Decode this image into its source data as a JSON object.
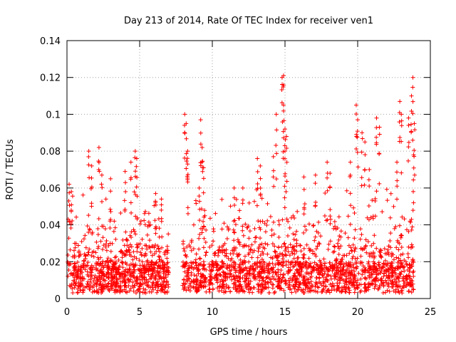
{
  "chart_data": {
    "type": "scatter",
    "title": "Day 213 of 2014, Rate Of TEC Index for receiver ven1",
    "xlabel": "GPS time / hours",
    "ylabel": "ROTI / TECUs",
    "xlim": [
      0,
      25
    ],
    "ylim": [
      0,
      0.14
    ],
    "xticks": [
      0,
      5,
      10,
      15,
      20,
      25
    ],
    "xtick_labels": [
      "0",
      "5",
      "10",
      "15",
      "20",
      "25"
    ],
    "yticks": [
      0,
      0.02,
      0.04,
      0.06,
      0.08,
      0.1,
      0.12,
      0.14
    ],
    "ytick_labels": [
      "0",
      "0.02",
      "0.04",
      "0.06",
      "0.08",
      "0.1",
      "0.12",
      "0.14"
    ],
    "grid": true,
    "marker": "+",
    "color": "#ff0000",
    "gaps": [
      [
        7.0,
        7.9
      ],
      [
        9.6,
        9.75
      ]
    ],
    "peaks": [
      [
        0.15,
        0.062
      ],
      [
        0.3,
        0.058
      ],
      [
        1.5,
        0.08
      ],
      [
        1.7,
        0.072
      ],
      [
        2.2,
        0.082
      ],
      [
        2.4,
        0.067
      ],
      [
        3.0,
        0.065
      ],
      [
        4.0,
        0.069
      ],
      [
        4.4,
        0.074
      ],
      [
        4.7,
        0.08
      ],
      [
        4.8,
        0.076
      ],
      [
        6.1,
        0.057
      ],
      [
        6.5,
        0.054
      ],
      [
        8.1,
        0.1
      ],
      [
        8.2,
        0.095
      ],
      [
        8.3,
        0.08
      ],
      [
        8.3,
        0.073
      ],
      [
        9.2,
        0.097
      ],
      [
        9.3,
        0.082
      ],
      [
        9.4,
        0.071
      ],
      [
        9.1,
        0.06
      ],
      [
        11.5,
        0.06
      ],
      [
        12.1,
        0.06
      ],
      [
        13.1,
        0.076
      ],
      [
        13.3,
        0.072
      ],
      [
        14.2,
        0.077
      ],
      [
        14.4,
        0.1
      ],
      [
        14.8,
        0.12
      ],
      [
        14.9,
        0.121
      ],
      [
        14.9,
        0.105
      ],
      [
        15.0,
        0.092
      ],
      [
        15.0,
        0.08
      ],
      [
        15.1,
        0.088
      ],
      [
        16.3,
        0.066
      ],
      [
        17.1,
        0.067
      ],
      [
        17.9,
        0.074
      ],
      [
        18.1,
        0.068
      ],
      [
        19.5,
        0.074
      ],
      [
        19.9,
        0.105
      ],
      [
        20.0,
        0.097
      ],
      [
        20.3,
        0.09
      ],
      [
        20.5,
        0.085
      ],
      [
        20.8,
        0.07
      ],
      [
        21.3,
        0.098
      ],
      [
        21.5,
        0.093
      ],
      [
        22.7,
        0.074
      ],
      [
        22.9,
        0.107
      ],
      [
        23.0,
        0.1
      ],
      [
        23.5,
        0.098
      ],
      [
        23.7,
        0.11
      ],
      [
        23.8,
        0.12
      ],
      [
        23.9,
        0.095
      ],
      [
        23.85,
        0.078
      ],
      [
        23.7,
        0.043
      ]
    ]
  }
}
